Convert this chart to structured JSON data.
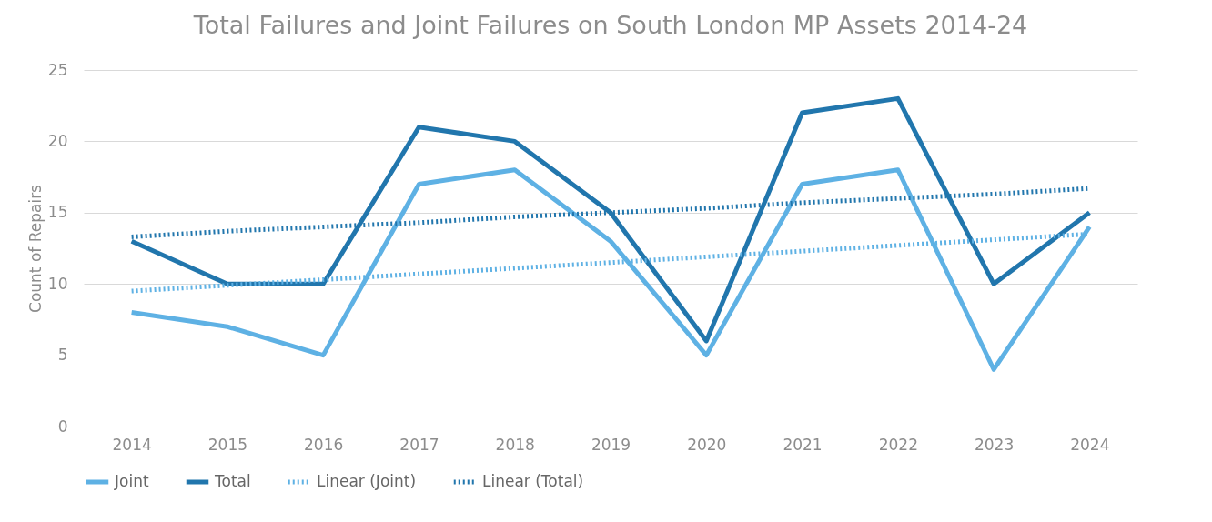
{
  "chart_data": {
    "type": "line",
    "title": "Total Failures and Joint Failures on South London MP Assets 2014-24",
    "ylabel": "Count of Repairs",
    "categories": [
      "2014",
      "2015",
      "2016",
      "2017",
      "2018",
      "2019",
      "2020",
      "2021",
      "2022",
      "2023",
      "2024"
    ],
    "series": [
      {
        "name": "Joint",
        "color": "#5eb1e4",
        "line_style": "solid",
        "values": [
          8,
          7,
          5,
          17,
          18,
          13,
          5,
          17,
          18,
          4,
          14
        ]
      },
      {
        "name": "Total",
        "color": "#2176ad",
        "line_style": "solid",
        "values": [
          13,
          10,
          10,
          21,
          20,
          15,
          6,
          22,
          23,
          10,
          15
        ]
      },
      {
        "name": "Linear (Joint)",
        "type": "line",
        "color": "#5eb1e4",
        "line_style": "dotted",
        "values": [
          9.5,
          9.9,
          10.3,
          10.7,
          11.1,
          11.5,
          11.9,
          12.3,
          12.7,
          13.1,
          13.5
        ]
      },
      {
        "name": "Linear (Total)",
        "type": "line",
        "color": "#2176ad",
        "line_style": "dotted",
        "values": [
          13.3,
          13.7,
          14.0,
          14.3,
          14.7,
          15.0,
          15.3,
          15.7,
          16.0,
          16.3,
          16.7
        ]
      }
    ],
    "ylim": [
      0,
      25
    ],
    "yticks": [
      0,
      5,
      10,
      15,
      20,
      25
    ],
    "grid": "y",
    "legend": "bottom",
    "marker": "none"
  }
}
